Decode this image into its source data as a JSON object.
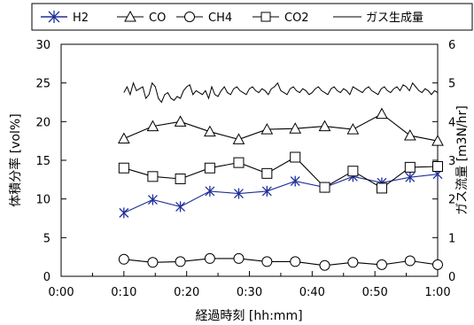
{
  "chart_data": {
    "type": "line",
    "title": "",
    "xlabel": "経過時刻 [hh:mm]",
    "ylabel_left": "体積分率 [vol%]",
    "ylabel_right": "ガス流量 [m3N/hr]",
    "x_ticks": [
      "0:00",
      "0:10",
      "0:20",
      "0:30",
      "0:40",
      "0:50",
      "1:00"
    ],
    "xlim_minutes": [
      0,
      60
    ],
    "ylim_left": [
      0,
      30
    ],
    "y_ticks_left": [
      0,
      5,
      10,
      15,
      20,
      25,
      30
    ],
    "ylim_right": [
      0,
      6
    ],
    "y_ticks_right": [
      0,
      1,
      2,
      3,
      4,
      5,
      6
    ],
    "grid": false,
    "legend_position": "top",
    "x_minutes": [
      10,
      14.6,
      19,
      23.7,
      28.3,
      32.8,
      37.3,
      42,
      46.5,
      51.1,
      55.6,
      60
    ],
    "series": [
      {
        "name": "H2",
        "axis": "left",
        "marker": "star",
        "color": "#1f2f99",
        "values": [
          8.2,
          9.9,
          9.0,
          11.0,
          10.7,
          11.0,
          12.3,
          11.5,
          12.9,
          12.1,
          12.8,
          13.2
        ]
      },
      {
        "name": "CO",
        "axis": "left",
        "marker": "triangle",
        "color": "#000000",
        "values": [
          17.8,
          19.4,
          20.0,
          18.7,
          17.7,
          19.0,
          19.1,
          19.4,
          19.0,
          21.0,
          18.2,
          17.5
        ]
      },
      {
        "name": "CH4",
        "axis": "left",
        "marker": "circle",
        "color": "#000000",
        "values": [
          2.2,
          1.8,
          1.9,
          2.3,
          2.3,
          1.9,
          1.9,
          1.4,
          1.8,
          1.5,
          2.0,
          1.5
        ]
      },
      {
        "name": "CO2",
        "axis": "left",
        "marker": "square",
        "color": "#000000",
        "values": [
          14.0,
          12.9,
          12.6,
          14.0,
          14.7,
          13.3,
          15.4,
          11.5,
          13.6,
          11.4,
          14.1,
          14.2
        ]
      },
      {
        "name": "ガス生成量",
        "axis": "right",
        "marker": "none",
        "color": "#000000",
        "x_minutes": [
          10,
          10.5,
          11,
          11.5,
          12,
          12.5,
          13,
          13.5,
          14,
          14.5,
          15,
          15.5,
          16,
          16.5,
          17,
          17.5,
          18,
          18.5,
          19,
          19.5,
          20,
          20.5,
          21,
          21.5,
          22,
          22.5,
          23,
          23.5,
          24,
          24.5,
          25,
          25.5,
          26,
          26.5,
          27,
          27.5,
          28,
          28.5,
          29,
          29.5,
          30,
          30.5,
          31,
          31.5,
          32,
          32.5,
          33,
          33.5,
          34,
          34.5,
          35,
          35.5,
          36,
          36.5,
          37,
          37.5,
          38,
          38.5,
          39,
          39.5,
          40,
          40.5,
          41,
          41.5,
          42,
          42.5,
          43,
          43.5,
          44,
          44.5,
          45,
          45.5,
          46,
          46.5,
          47,
          47.5,
          48,
          48.5,
          49,
          49.5,
          50,
          50.5,
          51,
          51.5,
          52,
          52.5,
          53,
          53.5,
          54,
          54.5,
          55,
          55.5,
          56,
          56.5,
          57,
          57.5,
          58,
          58.5,
          59,
          59.5,
          60
        ],
        "values": [
          4.75,
          4.9,
          4.7,
          5.0,
          4.8,
          4.85,
          4.9,
          4.6,
          4.7,
          5.0,
          4.9,
          4.6,
          4.5,
          4.7,
          4.75,
          4.6,
          4.55,
          4.65,
          4.6,
          4.8,
          4.9,
          4.95,
          4.7,
          4.8,
          4.75,
          4.7,
          4.8,
          4.6,
          4.9,
          4.7,
          4.65,
          4.8,
          4.9,
          4.75,
          4.7,
          4.85,
          4.9,
          4.8,
          4.75,
          4.7,
          4.85,
          4.9,
          4.8,
          4.75,
          4.85,
          4.8,
          4.7,
          4.85,
          4.9,
          5.0,
          4.8,
          4.75,
          4.7,
          4.85,
          4.9,
          4.8,
          4.75,
          4.85,
          4.8,
          4.7,
          4.75,
          4.85,
          4.9,
          4.8,
          4.75,
          4.7,
          4.85,
          4.9,
          4.8,
          4.75,
          4.85,
          4.8,
          4.7,
          4.9,
          4.85,
          4.8,
          4.75,
          4.85,
          4.9,
          4.8,
          4.75,
          4.7,
          4.85,
          4.9,
          4.8,
          4.75,
          4.85,
          4.9,
          4.8,
          4.95,
          4.9,
          4.8,
          5.0,
          4.9,
          4.8,
          4.75,
          4.85,
          4.8,
          4.7,
          4.8,
          4.75
        ]
      }
    ]
  },
  "colors": {
    "h2": "#1f2f99",
    "other": "#000000",
    "background": "#ffffff"
  }
}
